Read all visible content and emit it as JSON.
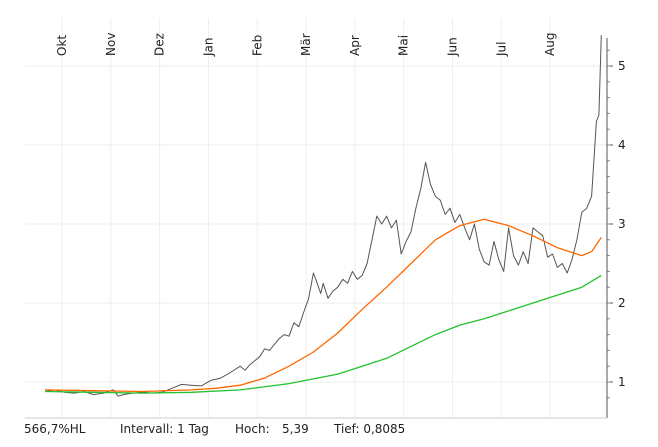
{
  "chart_data": {
    "type": "line",
    "x_ticks": [
      "Okt",
      "Nov",
      "Dez",
      "Jan",
      "Feb",
      "Mär",
      "Apr",
      "Mai",
      "Jun",
      "Jul",
      "Aug"
    ],
    "y_ticks": [
      "1",
      "2",
      "3",
      "4",
      "5"
    ],
    "ylim": [
      0.75,
      5.4
    ],
    "grid": true,
    "series": [
      {
        "color": "#555555",
        "style": "thin",
        "points": [
          [
            0.0,
            0.88
          ],
          [
            0.2,
            0.9
          ],
          [
            0.4,
            0.87
          ],
          [
            0.6,
            0.86
          ],
          [
            0.8,
            0.88
          ],
          [
            1.0,
            0.84
          ],
          [
            1.2,
            0.86
          ],
          [
            1.4,
            0.9
          ],
          [
            1.5,
            0.82
          ],
          [
            1.6,
            0.84
          ],
          [
            1.8,
            0.86
          ],
          [
            2.0,
            0.87
          ],
          [
            2.2,
            0.86
          ],
          [
            2.4,
            0.87
          ],
          [
            2.6,
            0.92
          ],
          [
            2.8,
            0.97
          ],
          [
            3.0,
            0.96
          ],
          [
            3.2,
            0.95
          ],
          [
            3.4,
            1.02
          ],
          [
            3.6,
            1.05
          ],
          [
            3.8,
            1.12
          ],
          [
            4.0,
            1.2
          ],
          [
            4.1,
            1.15
          ],
          [
            4.2,
            1.22
          ],
          [
            4.4,
            1.32
          ],
          [
            4.5,
            1.42
          ],
          [
            4.6,
            1.4
          ],
          [
            4.8,
            1.55
          ],
          [
            4.9,
            1.6
          ],
          [
            5.0,
            1.58
          ],
          [
            5.1,
            1.75
          ],
          [
            5.2,
            1.7
          ],
          [
            5.3,
            1.88
          ],
          [
            5.4,
            2.05
          ],
          [
            5.5,
            2.38
          ],
          [
            5.55,
            2.3
          ],
          [
            5.65,
            2.12
          ],
          [
            5.7,
            2.25
          ],
          [
            5.8,
            2.06
          ],
          [
            5.9,
            2.15
          ],
          [
            6.0,
            2.2
          ],
          [
            6.1,
            2.3
          ],
          [
            6.2,
            2.25
          ],
          [
            6.3,
            2.4
          ],
          [
            6.4,
            2.3
          ],
          [
            6.5,
            2.35
          ],
          [
            6.6,
            2.5
          ],
          [
            6.7,
            2.8
          ],
          [
            6.8,
            3.1
          ],
          [
            6.9,
            3.0
          ],
          [
            7.0,
            3.1
          ],
          [
            7.1,
            2.95
          ],
          [
            7.2,
            3.05
          ],
          [
            7.3,
            2.62
          ],
          [
            7.4,
            2.78
          ],
          [
            7.5,
            2.9
          ],
          [
            7.6,
            3.2
          ],
          [
            7.7,
            3.45
          ],
          [
            7.8,
            3.78
          ],
          [
            7.9,
            3.5
          ],
          [
            8.0,
            3.35
          ],
          [
            8.1,
            3.3
          ],
          [
            8.2,
            3.12
          ],
          [
            8.3,
            3.2
          ],
          [
            8.4,
            3.02
          ],
          [
            8.5,
            3.12
          ],
          [
            8.6,
            2.95
          ],
          [
            8.7,
            2.8
          ],
          [
            8.8,
            3.0
          ],
          [
            8.9,
            2.68
          ],
          [
            9.0,
            2.52
          ],
          [
            9.1,
            2.48
          ],
          [
            9.2,
            2.78
          ],
          [
            9.3,
            2.55
          ],
          [
            9.4,
            2.4
          ],
          [
            9.5,
            2.95
          ],
          [
            9.6,
            2.6
          ],
          [
            9.7,
            2.48
          ],
          [
            9.8,
            2.65
          ],
          [
            9.9,
            2.5
          ],
          [
            10.0,
            2.95
          ],
          [
            10.1,
            2.9
          ],
          [
            10.2,
            2.85
          ],
          [
            10.3,
            2.58
          ],
          [
            10.4,
            2.62
          ],
          [
            10.5,
            2.45
          ],
          [
            10.6,
            2.5
          ],
          [
            10.7,
            2.38
          ],
          [
            10.8,
            2.55
          ],
          [
            10.9,
            2.8
          ],
          [
            11.0,
            3.15
          ],
          [
            11.1,
            3.2
          ],
          [
            11.2,
            3.35
          ],
          [
            11.3,
            4.3
          ],
          [
            11.35,
            4.38
          ],
          [
            11.4,
            5.39
          ]
        ]
      },
      {
        "color": "#ff6600",
        "style": "moving average",
        "points": [
          [
            0.0,
            0.9
          ],
          [
            1.0,
            0.89
          ],
          [
            2.0,
            0.88
          ],
          [
            3.0,
            0.9
          ],
          [
            3.5,
            0.92
          ],
          [
            4.0,
            0.96
          ],
          [
            4.5,
            1.05
          ],
          [
            5.0,
            1.2
          ],
          [
            5.5,
            1.38
          ],
          [
            6.0,
            1.62
          ],
          [
            6.5,
            1.92
          ],
          [
            7.0,
            2.2
          ],
          [
            7.5,
            2.5
          ],
          [
            8.0,
            2.8
          ],
          [
            8.5,
            2.98
          ],
          [
            9.0,
            3.06
          ],
          [
            9.5,
            2.98
          ],
          [
            10.0,
            2.85
          ],
          [
            10.5,
            2.7
          ],
          [
            11.0,
            2.6
          ],
          [
            11.2,
            2.65
          ],
          [
            11.4,
            2.83
          ]
        ]
      },
      {
        "color": "#22c22e",
        "style": "moving average",
        "points": [
          [
            0.0,
            0.88
          ],
          [
            1.0,
            0.87
          ],
          [
            2.0,
            0.86
          ],
          [
            3.0,
            0.87
          ],
          [
            4.0,
            0.9
          ],
          [
            5.0,
            0.98
          ],
          [
            6.0,
            1.1
          ],
          [
            7.0,
            1.3
          ],
          [
            7.5,
            1.45
          ],
          [
            8.0,
            1.6
          ],
          [
            8.5,
            1.72
          ],
          [
            9.0,
            1.8
          ],
          [
            9.5,
            1.9
          ],
          [
            10.0,
            2.0
          ],
          [
            10.5,
            2.1
          ],
          [
            11.0,
            2.2
          ],
          [
            11.4,
            2.35
          ]
        ]
      }
    ]
  },
  "footer": {
    "change": "566,7%HL",
    "interval": "Intervall: 1 Tag",
    "high_label": "Hoch:",
    "high_value": "5,39",
    "low": "Tief: 0,8085"
  }
}
